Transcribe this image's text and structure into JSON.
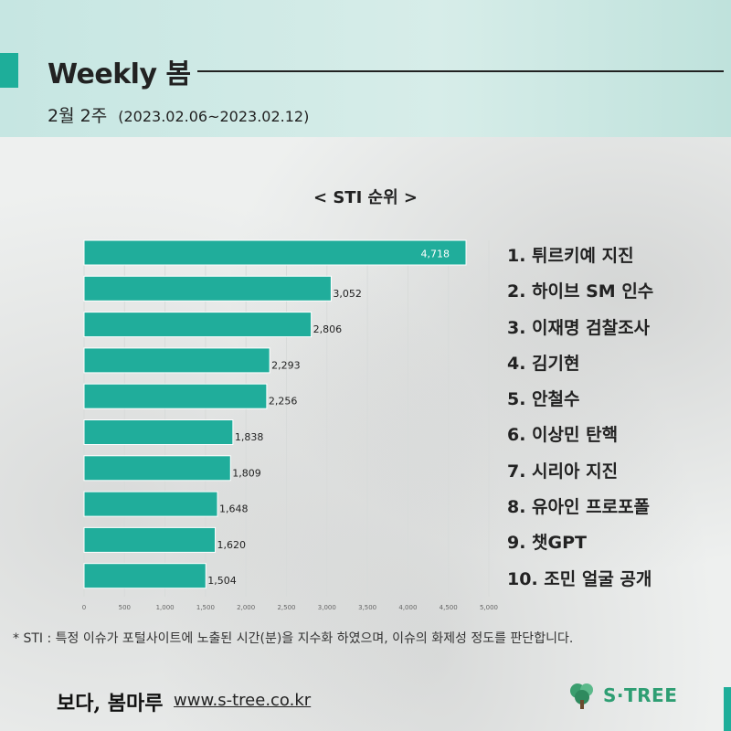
{
  "header": {
    "title": "Weekly 봄",
    "week": "2월 2주",
    "date_range": "(2023.02.06~2023.02.12)"
  },
  "chart_data": {
    "type": "bar",
    "orientation": "horizontal",
    "title": "< STI 순위 >",
    "categories": [
      "1. 튀르키예 지진",
      "2. 하이브 SM 인수",
      "3. 이재명 검찰조사",
      "4. 김기현",
      "5. 안철수",
      "6. 이상민 탄핵",
      "7. 시리아 지진",
      "8. 유아인 프로포폴",
      "9. 챗GPT",
      "10. 조민 얼굴 공개"
    ],
    "values": [
      4718,
      3052,
      2806,
      2293,
      2256,
      1838,
      1809,
      1648,
      1620,
      1504
    ],
    "value_labels": [
      "4,718",
      "3,052",
      "2,806",
      "2,293",
      "2,256",
      "1,838",
      "1,809",
      "1,648",
      "1,620",
      "1,504"
    ],
    "xlim": [
      0,
      5000
    ],
    "xticks": [
      "0",
      "500",
      "1,000",
      "1,500",
      "2,000",
      "2,500",
      "3,000",
      "3,500",
      "4,000",
      "4,500",
      "5,000"
    ],
    "grid": true,
    "bar_color": "#20ad9b"
  },
  "footnote": "* STI : 특정 이슈가 포털사이트에 노출된 시간(분)을 지수화 하였으며, 이슈의 화제성 정도를 판단합니다.",
  "footer": {
    "logo_text": "보다, 봄마루",
    "url": "www.s-tree.co.kr",
    "brand": "S·TREE"
  }
}
